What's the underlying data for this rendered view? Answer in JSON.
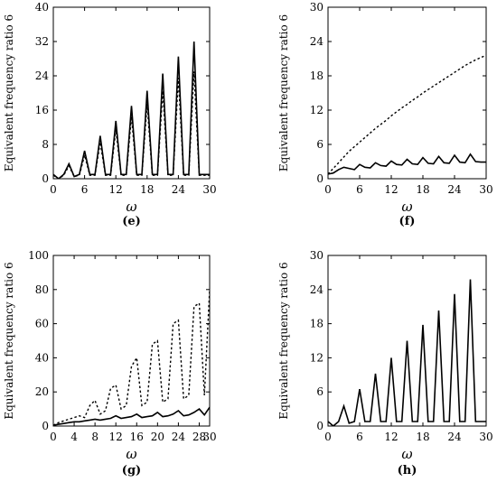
{
  "chart_data": [
    {
      "panel_label": "(e)",
      "type": "line",
      "xlabel": "ω",
      "ylabel": "Equivalent frequency ratio 6",
      "xlim": [
        0,
        30
      ],
      "ylim": [
        0,
        40
      ],
      "xticks": [
        0,
        6,
        12,
        18,
        24,
        30
      ],
      "yticks": [
        0,
        8,
        16,
        24,
        32,
        40
      ],
      "series": [
        {
          "style": "solid",
          "x": [
            0,
            1,
            2,
            3,
            4,
            5,
            6,
            7,
            8,
            9,
            10,
            11,
            12,
            13,
            14,
            15,
            16,
            17,
            18,
            19,
            20,
            21,
            22,
            23,
            24,
            25,
            26,
            27,
            28,
            29,
            30
          ],
          "y": [
            1,
            0,
            1,
            3.5,
            0.5,
            1,
            6.5,
            1,
            1,
            10,
            1,
            1,
            13.5,
            1,
            1,
            17,
            1,
            1,
            20.5,
            1,
            1,
            24.5,
            1,
            1,
            28.5,
            1,
            1,
            32,
            1,
            1,
            1
          ]
        },
        {
          "style": "dotted",
          "x": [
            0,
            1,
            2,
            3,
            4,
            5,
            6,
            7,
            8,
            9,
            10,
            11,
            12,
            13,
            14,
            15,
            16,
            17,
            18,
            19,
            20,
            21,
            22,
            23,
            24,
            25,
            26,
            27,
            28,
            29,
            30
          ],
          "y": [
            0.8,
            0,
            0.8,
            3,
            0.5,
            0.8,
            5.5,
            0.8,
            0.8,
            8.5,
            0.8,
            0.8,
            11.5,
            0.8,
            0.8,
            14.5,
            0.8,
            0.8,
            17.5,
            0.8,
            0.8,
            20.5,
            0.8,
            0.8,
            23.5,
            0.8,
            0.8,
            25,
            0.8,
            0.8,
            0.8
          ]
        }
      ]
    },
    {
      "panel_label": "(f)",
      "type": "line",
      "xlabel": "ω",
      "ylabel": "Equivalent frequency ratio 6",
      "xlim": [
        0,
        30
      ],
      "ylim": [
        0,
        30
      ],
      "xticks": [
        0,
        6,
        12,
        18,
        24,
        30
      ],
      "yticks": [
        0,
        6,
        12,
        18,
        24,
        30
      ],
      "series": [
        {
          "style": "solid",
          "x": [
            0,
            1,
            2,
            3,
            4,
            5,
            6,
            7,
            8,
            9,
            10,
            11,
            12,
            13,
            14,
            15,
            16,
            17,
            18,
            19,
            20,
            21,
            22,
            23,
            24,
            25,
            26,
            27,
            28,
            29,
            30
          ],
          "y": [
            0.8,
            1,
            1.6,
            2,
            1.8,
            1.6,
            2.5,
            2,
            1.9,
            2.8,
            2.3,
            2.2,
            3.1,
            2.5,
            2.4,
            3.4,
            2.6,
            2.5,
            3.7,
            2.7,
            2.6,
            3.9,
            2.8,
            2.7,
            4.1,
            2.9,
            2.8,
            4.3,
            3,
            2.9,
            2.9
          ]
        },
        {
          "style": "dotted",
          "x": [
            0,
            1,
            2,
            3,
            4,
            5,
            6,
            7,
            8,
            9,
            10,
            11,
            12,
            13,
            14,
            15,
            16,
            17,
            18,
            19,
            20,
            21,
            22,
            23,
            24,
            25,
            26,
            27,
            28,
            29,
            30
          ],
          "y": [
            0.8,
            1.8,
            2.8,
            3.8,
            4.8,
            5.6,
            6.4,
            7.2,
            8,
            8.8,
            9.5,
            10.2,
            11,
            11.7,
            12.4,
            13,
            13.7,
            14.3,
            15,
            15.6,
            16.2,
            16.8,
            17.4,
            18,
            18.6,
            19.2,
            19.8,
            20.3,
            20.8,
            21.2,
            21.6
          ]
        }
      ]
    },
    {
      "panel_label": "(g)",
      "type": "line",
      "xlabel": "ω",
      "ylabel": "Equivalent frequency ratio 6",
      "xlim": [
        0,
        30
      ],
      "ylim": [
        0,
        100
      ],
      "xticks": [
        0,
        4,
        8,
        12,
        16,
        20,
        24,
        28,
        30
      ],
      "yticks": [
        0,
        20,
        40,
        60,
        80,
        100
      ],
      "series": [
        {
          "style": "solid",
          "x": [
            0,
            1,
            2,
            3,
            4,
            5,
            6,
            7,
            8,
            9,
            10,
            11,
            12,
            13,
            14,
            15,
            16,
            17,
            18,
            19,
            20,
            21,
            22,
            23,
            24,
            25,
            26,
            27,
            28,
            29,
            30
          ],
          "y": [
            0.5,
            1,
            1.5,
            2,
            2.5,
            2.5,
            3,
            3.5,
            4,
            3.5,
            4,
            4.5,
            6,
            4.5,
            5,
            5.5,
            7,
            5,
            5.5,
            6,
            8,
            5.5,
            6,
            7,
            9,
            6,
            6.5,
            8,
            10,
            6.5,
            11
          ]
        },
        {
          "style": "dotted",
          "x": [
            0,
            1,
            2,
            3,
            4,
            5,
            6,
            7,
            8,
            9,
            10,
            11,
            12,
            13,
            14,
            15,
            16,
            17,
            18,
            19,
            20,
            21,
            22,
            23,
            24,
            25,
            26,
            27,
            28,
            29,
            30
          ],
          "y": [
            0.5,
            2,
            3,
            4,
            5,
            6,
            5,
            12,
            15,
            7,
            9,
            22,
            24,
            10,
            12,
            35,
            40,
            12,
            14,
            48,
            50,
            14,
            16,
            60,
            62,
            16,
            18,
            70,
            72,
            18,
            80
          ]
        }
      ]
    },
    {
      "panel_label": "(h)",
      "type": "line",
      "xlabel": "ω",
      "ylabel": "Equivalent frequency ratio 6",
      "xlim": [
        0,
        30
      ],
      "ylim": [
        0,
        30
      ],
      "xticks": [
        0,
        6,
        12,
        18,
        24,
        30
      ],
      "yticks": [
        0,
        6,
        12,
        18,
        24,
        30
      ],
      "series": [
        {
          "style": "solid",
          "x": [
            0,
            1,
            2,
            3,
            4,
            5,
            6,
            7,
            8,
            9,
            10,
            11,
            12,
            13,
            14,
            15,
            16,
            17,
            18,
            19,
            20,
            21,
            22,
            23,
            24,
            25,
            26,
            27,
            28,
            29,
            30
          ],
          "y": [
            0.8,
            0,
            0.8,
            3.5,
            0.5,
            0.8,
            6.5,
            0.8,
            0.8,
            9.2,
            0.8,
            0.8,
            12,
            0.8,
            0.8,
            15,
            0.8,
            0.8,
            17.8,
            0.8,
            0.8,
            20.3,
            0.8,
            0.8,
            23.2,
            0.8,
            0.8,
            25.8,
            0.8,
            0.8,
            0.8
          ]
        }
      ]
    }
  ]
}
